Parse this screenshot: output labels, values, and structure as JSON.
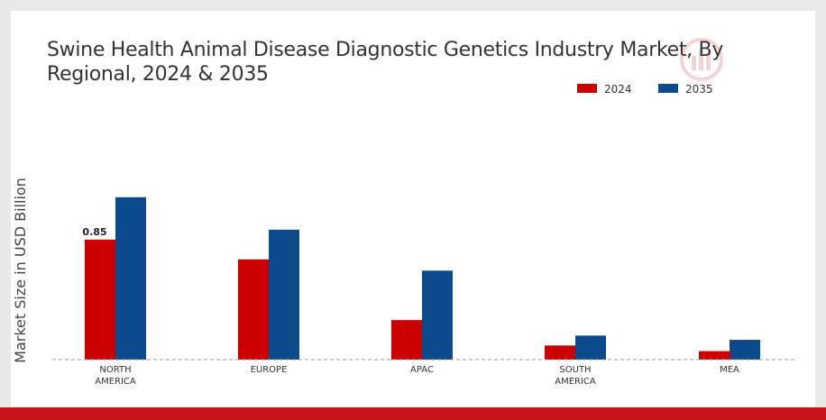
{
  "chart_data": {
    "type": "bar",
    "title": "Swine Health Animal Disease Diagnostic Genetics Industry Market, By Regional, 2024 & 2035",
    "ylabel": "Market Size in USD Billion",
    "xlabel": "",
    "categories": [
      "NORTH AMERICA",
      "EUROPE",
      "APAC",
      "SOUTH AMERICA",
      "MEA"
    ],
    "series": [
      {
        "name": "2024",
        "color": "#cc0000",
        "values": [
          0.85,
          0.71,
          0.28,
          0.1,
          0.06
        ]
      },
      {
        "name": "2035",
        "color": "#0b4a8b",
        "values": [
          1.15,
          0.92,
          0.63,
          0.17,
          0.14
        ]
      }
    ],
    "data_labels": [
      {
        "series": "2024",
        "category": "NORTH AMERICA",
        "text": "0.85"
      }
    ],
    "ylim": [
      0,
      1.5
    ],
    "grid": false,
    "legend_position": "top-right"
  },
  "colors": {
    "accent": "#cc0000",
    "baseline": "#999999"
  },
  "watermark_icon": "brand-logo-icon"
}
